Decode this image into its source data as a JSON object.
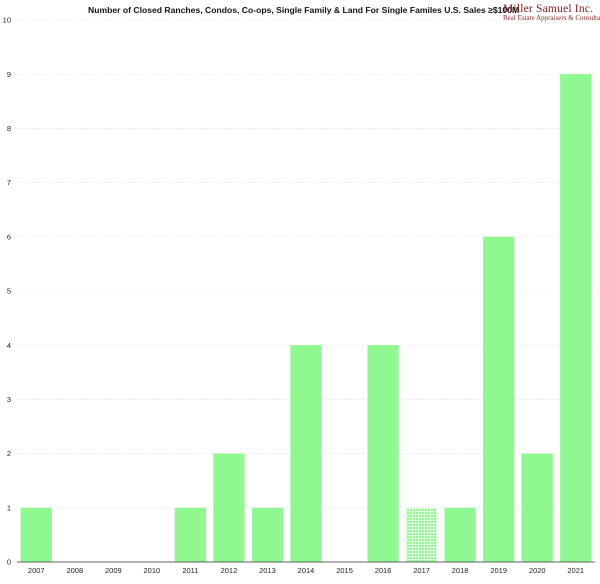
{
  "brand": {
    "name": "Miller Samuel Inc.",
    "tagline": "Real Estate Appraisers & Consultants"
  },
  "colors": {
    "bar": "#90f890",
    "bar_pattern_stripe": "#ffffff",
    "grid": "#dcdcdc",
    "axis": "#333333"
  },
  "chart_data": {
    "type": "bar",
    "title": "Number of Closed Ranches, Condos, Co-ops, Single Family & Land For Single Familes U.S. Sales ≥$100M",
    "xlabel": "",
    "ylabel": "",
    "categories": [
      "2007",
      "2008",
      "2009",
      "2010",
      "2011",
      "2012",
      "2013",
      "2014",
      "2015",
      "2016",
      "2017",
      "2018",
      "2019",
      "2020",
      "2021"
    ],
    "values": [
      1,
      0,
      0,
      0,
      1,
      2,
      1,
      4,
      0,
      4,
      1,
      1,
      6,
      2,
      9
    ],
    "hatched": [
      false,
      false,
      false,
      false,
      false,
      false,
      false,
      false,
      false,
      false,
      true,
      false,
      false,
      false,
      false
    ],
    "ylim": [
      0,
      10
    ],
    "yticks": [
      0,
      1,
      2,
      3,
      4,
      5,
      6,
      7,
      8,
      9,
      10
    ],
    "grid": true,
    "legend": "none"
  }
}
